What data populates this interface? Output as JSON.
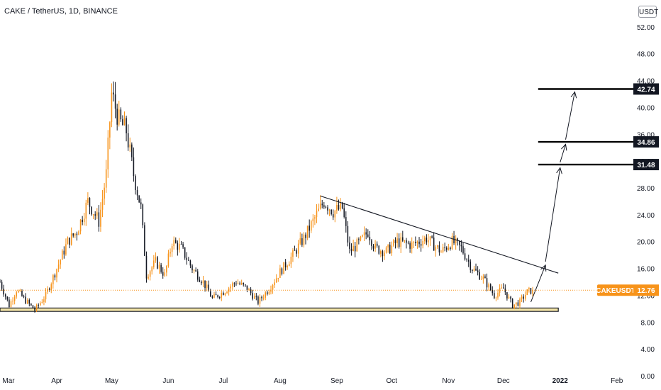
{
  "header": {
    "title": "CAKE / TetherUS, 1D, BINANCE"
  },
  "unit_button": "USDT",
  "colors": {
    "up": "#f7931a",
    "down": "#131722",
    "support_fill": "#f5e6a8",
    "last_price_bg": "#f7931a",
    "target_bg": "#131722"
  },
  "chart_data": {
    "type": "candlestick",
    "title": "CAKE / TetherUS, 1D, BINANCE",
    "ylim": [
      0,
      56
    ],
    "y_ticks": [
      "0.00",
      "4.00",
      "8.00",
      "12.00",
      "16.00",
      "20.00",
      "24.00",
      "28.00",
      "32.00",
      "36.00",
      "40.00",
      "44.00",
      "48.00",
      "52.00"
    ],
    "x_ticks": [
      "Mar",
      "Apr",
      "May",
      "Jun",
      "Jul",
      "Aug",
      "Sep",
      "Oct",
      "Nov",
      "Dec",
      "2022",
      "Feb"
    ],
    "x_range": [
      "2021-03-01",
      "2022-02-10"
    ],
    "close_path": [
      [
        "2021-03-01",
        14.0
      ],
      [
        "2021-03-06",
        10.5
      ],
      [
        "2021-03-10",
        12.8
      ],
      [
        "2021-03-14",
        11.5
      ],
      [
        "2021-03-20",
        9.8
      ],
      [
        "2021-03-26",
        12.0
      ],
      [
        "2021-04-01",
        16.0
      ],
      [
        "2021-04-07",
        20.0
      ],
      [
        "2021-04-12",
        21.5
      ],
      [
        "2021-04-18",
        26.0
      ],
      [
        "2021-04-24",
        23.0
      ],
      [
        "2021-04-28",
        30.0
      ],
      [
        "2021-05-01",
        42.0
      ],
      [
        "2021-05-05",
        38.0
      ],
      [
        "2021-05-09",
        36.5
      ],
      [
        "2021-05-13",
        30.0
      ],
      [
        "2021-05-17",
        25.0
      ],
      [
        "2021-05-20",
        15.0
      ],
      [
        "2021-05-25",
        17.0
      ],
      [
        "2021-05-30",
        15.0
      ],
      [
        "2021-06-03",
        20.0
      ],
      [
        "2021-06-08",
        19.0
      ],
      [
        "2021-06-14",
        16.0
      ],
      [
        "2021-06-20",
        14.0
      ],
      [
        "2021-06-25",
        11.5
      ],
      [
        "2021-07-01",
        12.5
      ],
      [
        "2021-07-08",
        14.0
      ],
      [
        "2021-07-14",
        13.0
      ],
      [
        "2021-07-20",
        11.0
      ],
      [
        "2021-07-26",
        13.0
      ],
      [
        "2021-08-01",
        15.5
      ],
      [
        "2021-08-08",
        18.0
      ],
      [
        "2021-08-14",
        20.5
      ],
      [
        "2021-08-20",
        23.5
      ],
      [
        "2021-08-25",
        26.0
      ],
      [
        "2021-08-30",
        24.5
      ],
      [
        "2021-09-04",
        25.0
      ],
      [
        "2021-09-08",
        18.5
      ],
      [
        "2021-09-14",
        20.0
      ],
      [
        "2021-09-18",
        21.5
      ],
      [
        "2021-09-22",
        19.0
      ],
      [
        "2021-09-28",
        18.5
      ],
      [
        "2021-10-04",
        20.0
      ],
      [
        "2021-10-12",
        19.5
      ],
      [
        "2021-10-20",
        20.5
      ],
      [
        "2021-10-28",
        18.5
      ],
      [
        "2021-11-03",
        20.0
      ],
      [
        "2021-11-08",
        19.0
      ],
      [
        "2021-11-14",
        16.0
      ],
      [
        "2021-11-20",
        14.5
      ],
      [
        "2021-11-26",
        12.0
      ],
      [
        "2021-12-01",
        13.0
      ],
      [
        "2021-12-06",
        10.5
      ],
      [
        "2021-12-10",
        11.0
      ],
      [
        "2021-12-14",
        12.5
      ],
      [
        "2021-12-17",
        12.76
      ]
    ],
    "last_price": {
      "label": "CAKEUSDT",
      "value": "12.76"
    },
    "support_zone": {
      "from": 9.6,
      "to": 10.1,
      "start": "2021-03-01",
      "end": "2021-12-31"
    },
    "trendline": {
      "points": [
        [
          "2021-08-23",
          26.8
        ],
        [
          "2021-12-31",
          15.3
        ]
      ]
    },
    "target_levels": [
      {
        "value": 31.48,
        "label": "31.48",
        "start": "2021-12-20"
      },
      {
        "value": 34.86,
        "label": "34.86",
        "start": "2021-12-20"
      },
      {
        "value": 42.74,
        "label": "42.74",
        "start": "2021-12-20"
      }
    ],
    "projection_arrows": [
      [
        [
          "2021-12-16",
          11.0
        ],
        [
          "2021-12-24",
          16.5
        ]
      ],
      [
        [
          "2021-12-24",
          17.0
        ],
        [
          "2022-01-01",
          31.0
        ]
      ],
      [
        [
          "2022-01-01",
          31.8
        ],
        [
          "2022-01-04",
          34.5
        ]
      ],
      [
        [
          "2022-01-04",
          35.2
        ],
        [
          "2022-01-09",
          42.3
        ]
      ]
    ]
  }
}
